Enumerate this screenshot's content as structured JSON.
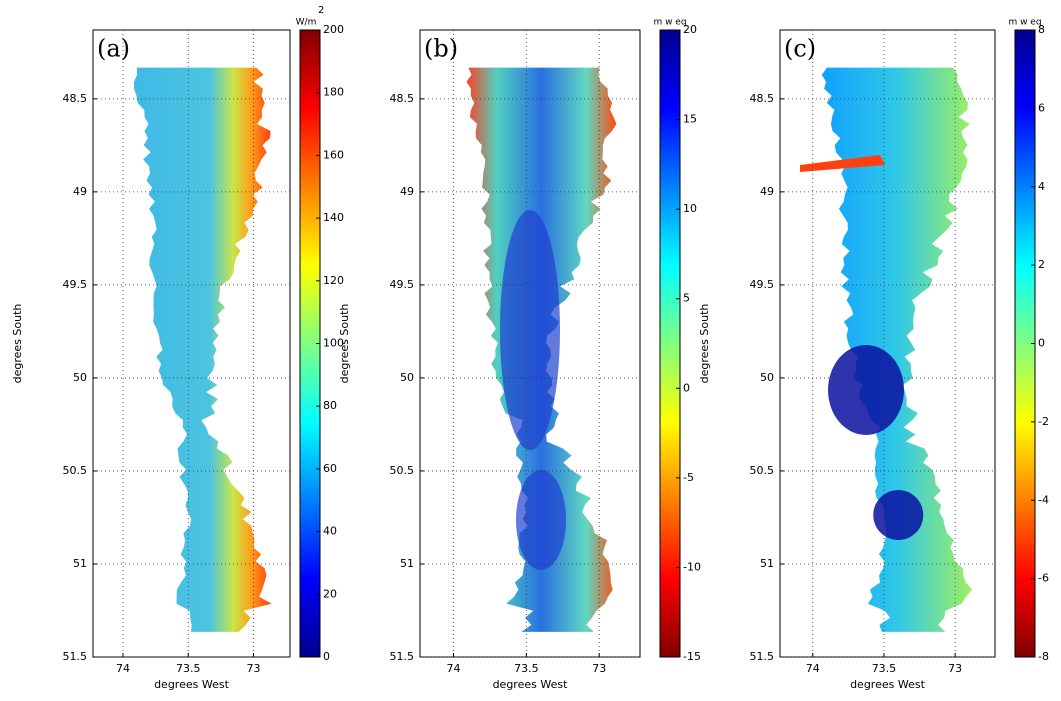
{
  "chart_data": [
    {
      "type": "map",
      "panel_label": "(a)",
      "xlabel": "degrees West",
      "ylabel": "degrees South",
      "xlim": [
        74.23,
        72.72
      ],
      "xticks": [
        74,
        73.5,
        73
      ],
      "ylim": [
        48.13,
        51.5
      ],
      "yticks": [
        48.5,
        49,
        49.5,
        50,
        50.5,
        51,
        51.5
      ],
      "grid": true,
      "colorbar": {
        "label": "W/m",
        "label_superscript": "2",
        "clim": [
          0,
          200
        ],
        "ticks": [
          0,
          20,
          40,
          60,
          80,
          100,
          120,
          140,
          160,
          180,
          200
        ],
        "colormap": "jet",
        "reversed": false
      }
    },
    {
      "type": "map",
      "panel_label": "(b)",
      "xlabel": "degrees West",
      "ylabel": "degrees South",
      "xlim": [
        74.23,
        72.72
      ],
      "xticks": [
        74,
        73.5,
        73
      ],
      "ylim": [
        48.13,
        51.5
      ],
      "yticks": [
        48.5,
        49,
        49.5,
        50,
        50.5,
        51,
        51.5
      ],
      "grid": true,
      "colorbar": {
        "label": "m w eq",
        "clim": [
          -15,
          20
        ],
        "ticks": [
          -15,
          -10,
          -5,
          0,
          5,
          10,
          15,
          20
        ],
        "colormap": "jet",
        "reversed": true
      }
    },
    {
      "type": "map",
      "panel_label": "(c)",
      "xlabel": "degrees West",
      "ylabel": "degrees South",
      "xlim": [
        74.23,
        72.72
      ],
      "xticks": [
        74,
        73.5,
        73
      ],
      "ylim": [
        48.13,
        51.5
      ],
      "yticks": [
        48.5,
        49,
        49.5,
        50,
        50.5,
        51,
        51.5
      ],
      "grid": true,
      "colorbar": {
        "label": "m w eq",
        "clim": [
          -8,
          8
        ],
        "ticks": [
          -8,
          -6,
          -4,
          -2,
          0,
          2,
          4,
          6,
          8
        ],
        "colormap": "jet",
        "reversed": true
      }
    }
  ]
}
